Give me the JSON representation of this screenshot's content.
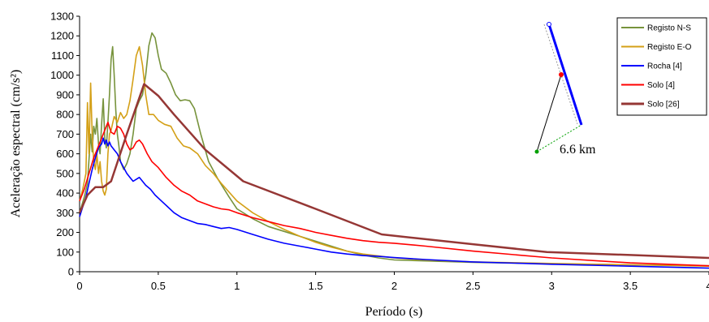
{
  "chart_data": {
    "type": "line",
    "title": "",
    "xlabel": "Período (s)",
    "ylabel": "Aceleração espectral (cm/s²)",
    "xlim": [
      0,
      4
    ],
    "ylim": [
      0,
      1300
    ],
    "xticks": [
      {
        "v": 0,
        "label": "0"
      },
      {
        "v": 0.5,
        "label": "0.5"
      },
      {
        "v": 1,
        "label": "1"
      },
      {
        "v": 1.5,
        "label": "1.5"
      },
      {
        "v": 2,
        "label": "2"
      },
      {
        "v": 2.5,
        "label": "2.5"
      },
      {
        "v": 3,
        "label": "3"
      },
      {
        "v": 3.5,
        "label": "3.5"
      },
      {
        "v": 4,
        "label": "4"
      }
    ],
    "yticks": [
      {
        "v": 0,
        "label": "0"
      },
      {
        "v": 100,
        "label": "100"
      },
      {
        "v": 200,
        "label": "200"
      },
      {
        "v": 300,
        "label": "300"
      },
      {
        "v": 400,
        "label": "400"
      },
      {
        "v": 500,
        "label": "500"
      },
      {
        "v": 600,
        "label": "600"
      },
      {
        "v": 700,
        "label": "700"
      },
      {
        "v": 800,
        "label": "800"
      },
      {
        "v": 900,
        "label": "900"
      },
      {
        "v": 1000,
        "label": "1000"
      },
      {
        "v": 1100,
        "label": "1100"
      },
      {
        "v": 1200,
        "label": "1200"
      },
      {
        "v": 1300,
        "label": "1300"
      }
    ],
    "grid": false,
    "legend_position": "top-right",
    "series": [
      {
        "name": "Registo N-S",
        "color": "#77933c",
        "points": [
          [
            0,
            300
          ],
          [
            0.03,
            380
          ],
          [
            0.05,
            450
          ],
          [
            0.07,
            700
          ],
          [
            0.08,
            610
          ],
          [
            0.09,
            740
          ],
          [
            0.1,
            700
          ],
          [
            0.11,
            780
          ],
          [
            0.12,
            650
          ],
          [
            0.13,
            600
          ],
          [
            0.14,
            750
          ],
          [
            0.15,
            880
          ],
          [
            0.16,
            680
          ],
          [
            0.17,
            630
          ],
          [
            0.18,
            760
          ],
          [
            0.19,
            900
          ],
          [
            0.2,
            1080
          ],
          [
            0.21,
            1145
          ],
          [
            0.22,
            1000
          ],
          [
            0.23,
            820
          ],
          [
            0.24,
            700
          ],
          [
            0.25,
            640
          ],
          [
            0.26,
            560
          ],
          [
            0.28,
            520
          ],
          [
            0.3,
            550
          ],
          [
            0.32,
            600
          ],
          [
            0.34,
            700
          ],
          [
            0.36,
            830
          ],
          [
            0.38,
            870
          ],
          [
            0.4,
            900
          ],
          [
            0.42,
            1000
          ],
          [
            0.44,
            1150
          ],
          [
            0.46,
            1215
          ],
          [
            0.48,
            1190
          ],
          [
            0.5,
            1100
          ],
          [
            0.52,
            1030
          ],
          [
            0.55,
            1010
          ],
          [
            0.58,
            960
          ],
          [
            0.61,
            900
          ],
          [
            0.64,
            870
          ],
          [
            0.67,
            875
          ],
          [
            0.7,
            870
          ],
          [
            0.73,
            830
          ],
          [
            0.77,
            700
          ],
          [
            0.82,
            560
          ],
          [
            0.88,
            470
          ],
          [
            0.95,
            380
          ],
          [
            1.0,
            320
          ],
          [
            1.1,
            270
          ],
          [
            1.2,
            230
          ],
          [
            1.3,
            205
          ],
          [
            1.4,
            180
          ],
          [
            1.5,
            155
          ],
          [
            1.6,
            130
          ],
          [
            1.7,
            105
          ],
          [
            1.8,
            85
          ],
          [
            1.9,
            70
          ],
          [
            2.0,
            60
          ],
          [
            2.2,
            55
          ],
          [
            2.5,
            48
          ],
          [
            3.0,
            40
          ],
          [
            3.5,
            35
          ],
          [
            4.0,
            30
          ]
        ]
      },
      {
        "name": "Registo E-O",
        "color": "#d4a017",
        "points": [
          [
            0,
            360
          ],
          [
            0.02,
            420
          ],
          [
            0.04,
            500
          ],
          [
            0.05,
            860
          ],
          [
            0.06,
            600
          ],
          [
            0.07,
            960
          ],
          [
            0.08,
            700
          ],
          [
            0.09,
            560
          ],
          [
            0.1,
            520
          ],
          [
            0.11,
            600
          ],
          [
            0.12,
            500
          ],
          [
            0.13,
            560
          ],
          [
            0.14,
            460
          ],
          [
            0.15,
            410
          ],
          [
            0.16,
            390
          ],
          [
            0.17,
            420
          ],
          [
            0.18,
            600
          ],
          [
            0.19,
            700
          ],
          [
            0.2,
            720
          ],
          [
            0.22,
            790
          ],
          [
            0.24,
            760
          ],
          [
            0.26,
            810
          ],
          [
            0.28,
            780
          ],
          [
            0.3,
            800
          ],
          [
            0.32,
            870
          ],
          [
            0.34,
            980
          ],
          [
            0.36,
            1100
          ],
          [
            0.38,
            1145
          ],
          [
            0.4,
            1050
          ],
          [
            0.42,
            900
          ],
          [
            0.44,
            800
          ],
          [
            0.47,
            800
          ],
          [
            0.5,
            770
          ],
          [
            0.54,
            750
          ],
          [
            0.58,
            740
          ],
          [
            0.62,
            680
          ],
          [
            0.66,
            640
          ],
          [
            0.7,
            630
          ],
          [
            0.75,
            600
          ],
          [
            0.8,
            540
          ],
          [
            0.85,
            500
          ],
          [
            0.9,
            450
          ],
          [
            1.0,
            360
          ],
          [
            1.1,
            300
          ],
          [
            1.2,
            255
          ],
          [
            1.3,
            215
          ],
          [
            1.4,
            180
          ],
          [
            1.5,
            150
          ],
          [
            1.6,
            125
          ],
          [
            1.7,
            105
          ],
          [
            1.8,
            90
          ],
          [
            1.9,
            80
          ],
          [
            2.0,
            70
          ],
          [
            2.2,
            60
          ],
          [
            2.5,
            50
          ],
          [
            3.0,
            42
          ],
          [
            3.5,
            35
          ],
          [
            4.0,
            28
          ]
        ]
      },
      {
        "name": "Rocha [4]",
        "color": "#0000ff",
        "points": [
          [
            0,
            280
          ],
          [
            0.02,
            330
          ],
          [
            0.04,
            380
          ],
          [
            0.06,
            450
          ],
          [
            0.08,
            520
          ],
          [
            0.1,
            580
          ],
          [
            0.12,
            630
          ],
          [
            0.14,
            650
          ],
          [
            0.15,
            680
          ],
          [
            0.16,
            650
          ],
          [
            0.17,
            670
          ],
          [
            0.18,
            640
          ],
          [
            0.19,
            660
          ],
          [
            0.2,
            640
          ],
          [
            0.22,
            620
          ],
          [
            0.24,
            600
          ],
          [
            0.26,
            560
          ],
          [
            0.28,
            530
          ],
          [
            0.3,
            500
          ],
          [
            0.32,
            480
          ],
          [
            0.34,
            460
          ],
          [
            0.36,
            470
          ],
          [
            0.38,
            480
          ],
          [
            0.4,
            460
          ],
          [
            0.42,
            440
          ],
          [
            0.45,
            420
          ],
          [
            0.48,
            390
          ],
          [
            0.52,
            360
          ],
          [
            0.56,
            330
          ],
          [
            0.6,
            300
          ],
          [
            0.65,
            275
          ],
          [
            0.7,
            260
          ],
          [
            0.75,
            245
          ],
          [
            0.8,
            240
          ],
          [
            0.85,
            230
          ],
          [
            0.9,
            220
          ],
          [
            0.95,
            225
          ],
          [
            1.0,
            215
          ],
          [
            1.1,
            190
          ],
          [
            1.2,
            165
          ],
          [
            1.3,
            145
          ],
          [
            1.4,
            130
          ],
          [
            1.5,
            115
          ],
          [
            1.6,
            100
          ],
          [
            1.7,
            90
          ],
          [
            1.8,
            82
          ],
          [
            1.9,
            78
          ],
          [
            2.0,
            72
          ],
          [
            2.2,
            62
          ],
          [
            2.5,
            50
          ],
          [
            3.0,
            38
          ],
          [
            3.5,
            28
          ],
          [
            4.0,
            18
          ]
        ]
      },
      {
        "name": "Solo [4]",
        "color": "#ff0000",
        "points": [
          [
            0,
            360
          ],
          [
            0.03,
            420
          ],
          [
            0.06,
            500
          ],
          [
            0.09,
            580
          ],
          [
            0.12,
            640
          ],
          [
            0.15,
            700
          ],
          [
            0.18,
            760
          ],
          [
            0.2,
            710
          ],
          [
            0.22,
            700
          ],
          [
            0.24,
            740
          ],
          [
            0.26,
            730
          ],
          [
            0.28,
            700
          ],
          [
            0.3,
            650
          ],
          [
            0.32,
            620
          ],
          [
            0.34,
            630
          ],
          [
            0.36,
            660
          ],
          [
            0.38,
            670
          ],
          [
            0.4,
            650
          ],
          [
            0.43,
            600
          ],
          [
            0.46,
            560
          ],
          [
            0.5,
            530
          ],
          [
            0.55,
            480
          ],
          [
            0.6,
            440
          ],
          [
            0.65,
            410
          ],
          [
            0.7,
            390
          ],
          [
            0.75,
            360
          ],
          [
            0.8,
            345
          ],
          [
            0.85,
            330
          ],
          [
            0.9,
            320
          ],
          [
            0.95,
            315
          ],
          [
            1.0,
            300
          ],
          [
            1.1,
            275
          ],
          [
            1.2,
            255
          ],
          [
            1.3,
            235
          ],
          [
            1.4,
            220
          ],
          [
            1.5,
            200
          ],
          [
            1.6,
            185
          ],
          [
            1.7,
            170
          ],
          [
            1.8,
            158
          ],
          [
            1.9,
            150
          ],
          [
            2.0,
            145
          ],
          [
            2.2,
            130
          ],
          [
            2.5,
            105
          ],
          [
            3.0,
            70
          ],
          [
            3.5,
            45
          ],
          [
            4.0,
            30
          ]
        ]
      },
      {
        "name": "Solo [26]",
        "color": "#953735",
        "points": [
          [
            0,
            300
          ],
          [
            0.05,
            390
          ],
          [
            0.1,
            430
          ],
          [
            0.15,
            430
          ],
          [
            0.2,
            460
          ],
          [
            0.3,
            700
          ],
          [
            0.41,
            955
          ],
          [
            0.5,
            895
          ],
          [
            0.6,
            800
          ],
          [
            0.8,
            620
          ],
          [
            1.04,
            460
          ],
          [
            1.5,
            320
          ],
          [
            1.92,
            190
          ],
          [
            2.5,
            140
          ],
          [
            2.97,
            100
          ],
          [
            3.5,
            85
          ],
          [
            4.0,
            70
          ]
        ]
      }
    ],
    "annotation": "6.6 km"
  }
}
